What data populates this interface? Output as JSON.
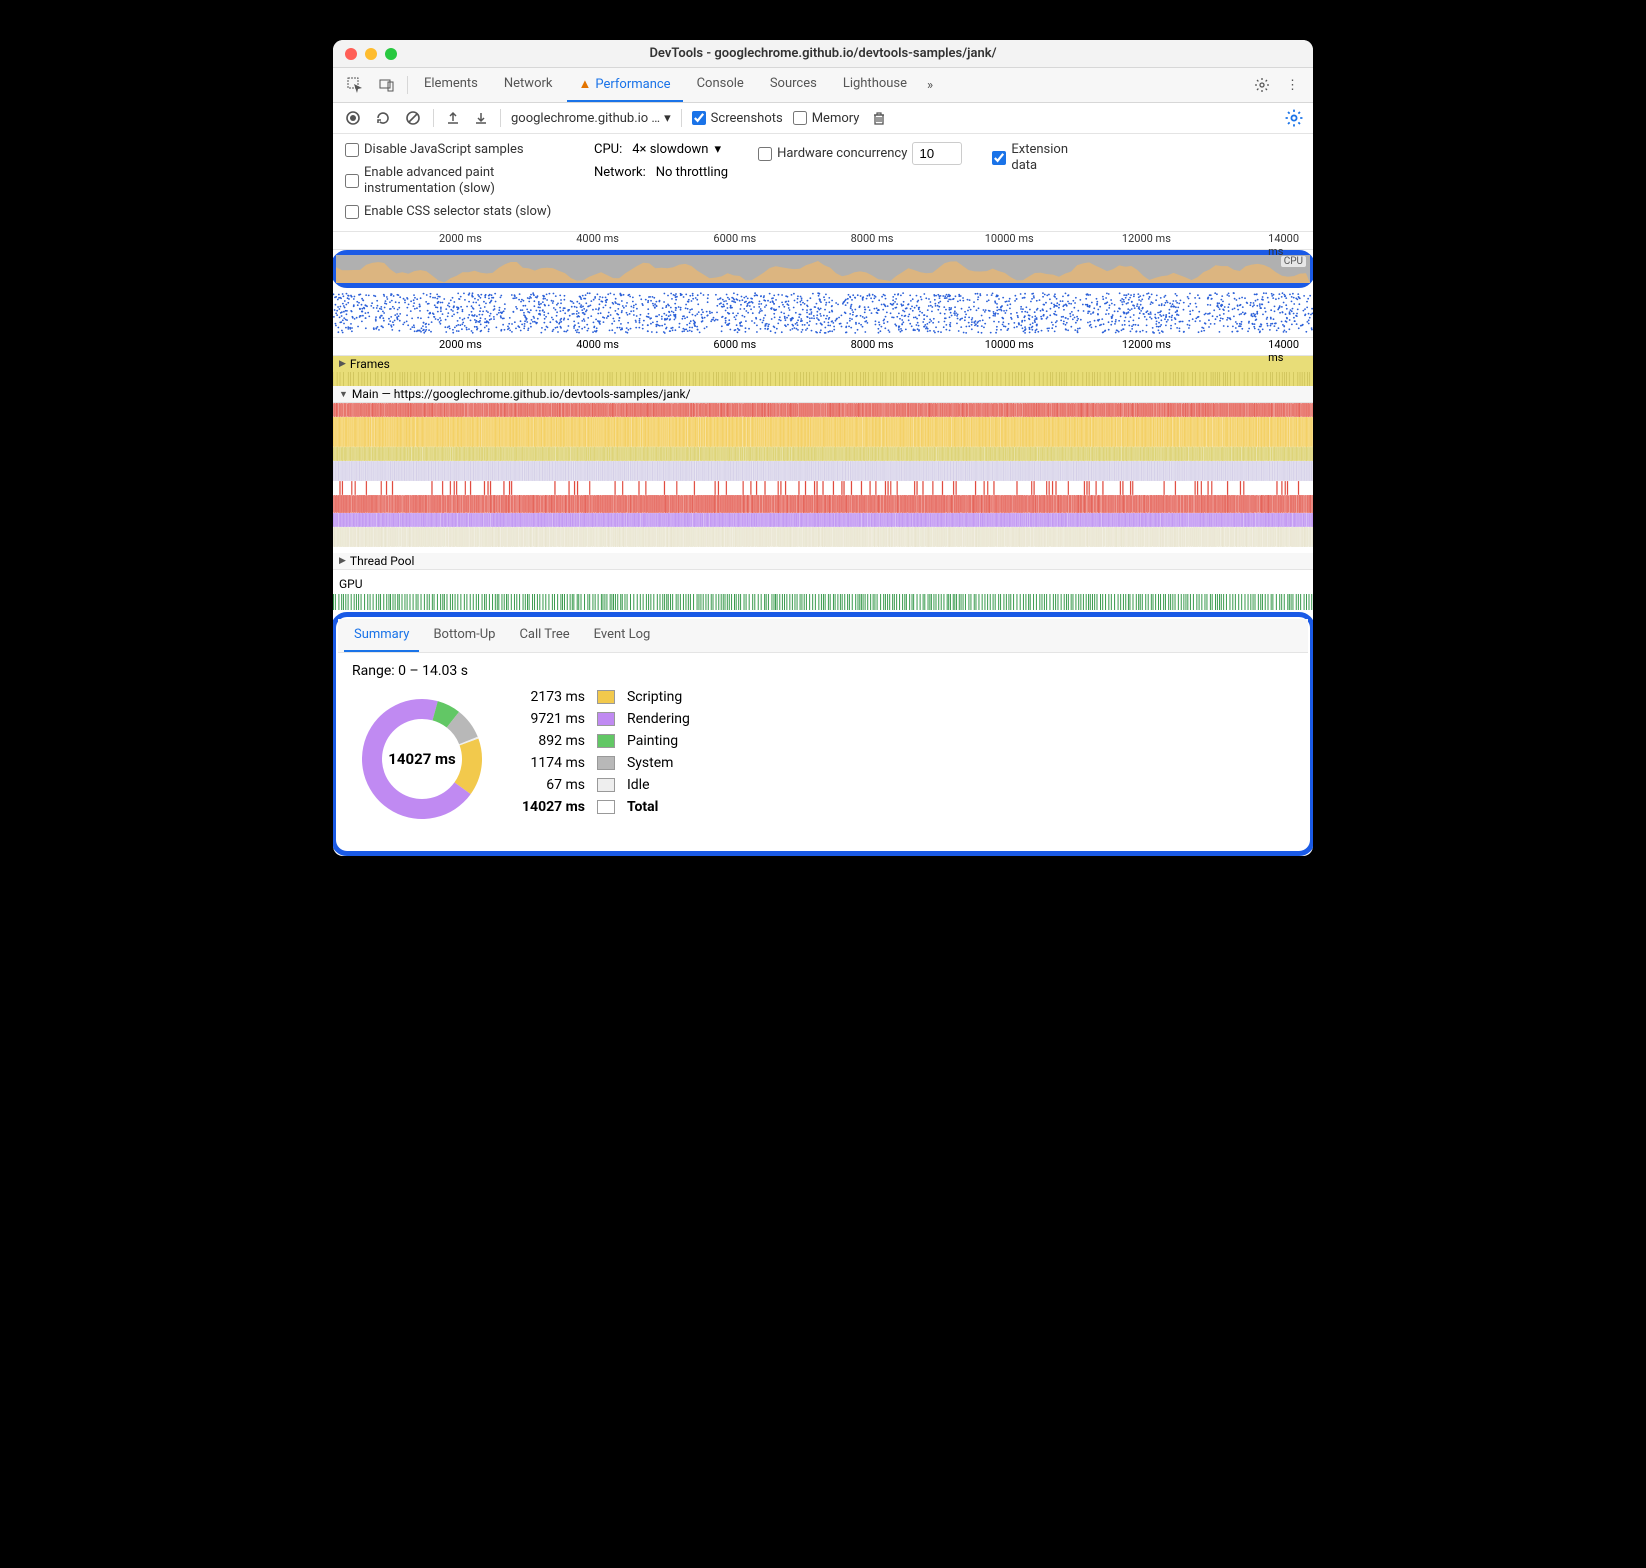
{
  "window": {
    "title": "DevTools - googlechrome.github.io/devtools-samples/jank/"
  },
  "tabstrip": {
    "tabs": [
      "Elements",
      "Network",
      "Performance",
      "Console",
      "Sources",
      "Lighthouse"
    ],
    "active": "Performance",
    "warn_on": "Performance",
    "overflow": "»"
  },
  "toolbar": {
    "url_dropdown": "googlechrome.github.io …",
    "screenshots_label": "Screenshots",
    "screenshots_checked": true,
    "memory_label": "Memory",
    "memory_checked": false
  },
  "settings": {
    "disable_js_label": "Disable JavaScript samples",
    "enable_paint_label": "Enable advanced paint instrumentation (slow)",
    "enable_css_label": "Enable CSS selector stats (slow)",
    "cpu_label": "CPU:",
    "cpu_value": "4× slowdown",
    "network_label": "Network:",
    "network_value": "No throttling",
    "hw_label": "Hardware concurrency",
    "hw_value": "10",
    "ext_label": "Extension data",
    "ext_checked": true
  },
  "timeline": {
    "ticks": [
      "2000 ms",
      "4000 ms",
      "6000 ms",
      "8000 ms",
      "10000 ms",
      "12000 ms",
      "14000 ms"
    ],
    "tick_positions_pct": [
      13,
      27,
      41,
      55,
      69,
      83,
      97
    ],
    "cpu_label": "CPU",
    "cpu_area_color": "#f2c94c",
    "cpu_bg": "#b0b0b0",
    "frames_label": "Frames",
    "main_label": "Main — https://googlechrome.github.io/devtools-samples/jank/",
    "threadpool_label": "Thread Pool",
    "gpu_label": "GPU",
    "flame_colors": {
      "task_red": "#e04b3f",
      "scripting": "#f2c94c",
      "scripting2": "#d8cd62",
      "layout_purple": "#b989f0",
      "rendering": "#c08af2",
      "light": "#e5e0c8",
      "gpu_green": "#3b9b4f"
    }
  },
  "bottom": {
    "tabs": [
      "Summary",
      "Bottom-Up",
      "Call Tree",
      "Event Log"
    ],
    "active": "Summary",
    "range": "Range: 0 – 14.03 s",
    "donut_total": "14027 ms",
    "legend": [
      {
        "ms": "2173 ms",
        "color": "#f2c94c",
        "label": "Scripting"
      },
      {
        "ms": "9721 ms",
        "color": "#c08af2",
        "label": "Rendering"
      },
      {
        "ms": "892 ms",
        "color": "#62c765",
        "label": "Painting"
      },
      {
        "ms": "1174 ms",
        "color": "#b8b8b8",
        "label": "System"
      },
      {
        "ms": "67 ms",
        "color": "#eeeeee",
        "label": "Idle"
      }
    ],
    "total_row": {
      "ms": "14027 ms",
      "label": "Total"
    },
    "donut": {
      "values": [
        2173,
        9721,
        892,
        1174,
        67
      ],
      "colors": [
        "#f2c94c",
        "#c08af2",
        "#62c765",
        "#b8b8b8",
        "#eeeeee"
      ],
      "start_angle_deg": -20
    }
  }
}
